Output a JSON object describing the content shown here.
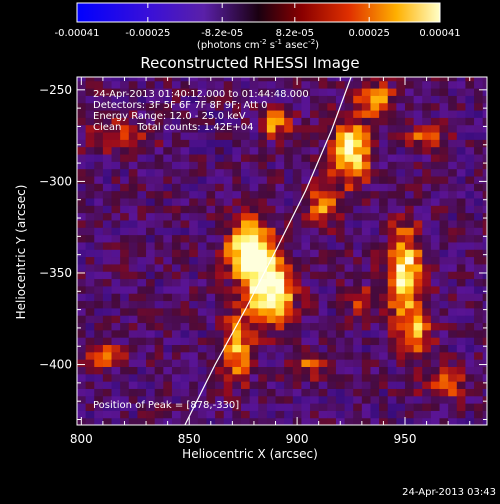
{
  "colorbar": {
    "tick_labels": [
      "-0.00041",
      "-0.00025",
      "-8.2e-05",
      "8.2e-05",
      "0.00025",
      "0.00041"
    ],
    "tick_values": [
      -0.00041,
      -0.00025,
      -8.2e-05,
      8.2e-05,
      0.00025,
      0.00041
    ],
    "range": [
      -0.00041,
      0.00041
    ],
    "unit_parts": [
      "(photons cm",
      "-2",
      " s",
      "-1",
      " asec",
      "-2",
      ")"
    ]
  },
  "chart_data": {
    "type": "heatmap",
    "title": "Reconstructed RHESSI Image",
    "xlabel": "Heliocentric X (arcsec)",
    "ylabel": "Heliocentric Y (arcsec)",
    "xlim": [
      798,
      988
    ],
    "ylim": [
      -433,
      -243
    ],
    "x_ticks": [
      800,
      850,
      900,
      950
    ],
    "y_ticks": [
      -250,
      -300,
      -350,
      -400
    ],
    "x_tick_labels": [
      "800",
      "850",
      "900",
      "950"
    ],
    "y_tick_labels": [
      "−250",
      "−300",
      "−350",
      "−400"
    ],
    "grid": false,
    "info_lines": [
      "24-Apr-2013 01:40:12.000 to 01:44:48.000",
      "Detectors: 3F 5F 6F 7F 8F 9F; Att 0",
      "Energy Range: 12.0 - 25.0 keV",
      "Clean     Total counts: 1.42E+04"
    ],
    "peak_label": "Position of Peak = [878,-330]",
    "peak": [
      878,
      -330
    ],
    "limb": [
      [
        848,
        -433
      ],
      [
        862,
        -400
      ],
      [
        876,
        -370
      ],
      [
        890,
        -338
      ],
      [
        904,
        -305
      ],
      [
        916,
        -272
      ],
      [
        925,
        -243
      ]
    ],
    "blobs": [
      {
        "x": 878,
        "y": -338,
        "sx": 7,
        "sy": 12,
        "a": 1.0
      },
      {
        "x": 888,
        "y": -360,
        "sx": 7,
        "sy": 12,
        "a": 0.95
      },
      {
        "x": 872,
        "y": -390,
        "sx": 5,
        "sy": 14,
        "a": 0.55
      },
      {
        "x": 925,
        "y": -283,
        "sx": 6,
        "sy": 12,
        "a": 0.8
      },
      {
        "x": 912,
        "y": -312,
        "sx": 5,
        "sy": 8,
        "a": 0.55
      },
      {
        "x": 936,
        "y": -255,
        "sx": 6,
        "sy": 6,
        "a": 0.55
      },
      {
        "x": 950,
        "y": -350,
        "sx": 6,
        "sy": 18,
        "a": 0.75
      },
      {
        "x": 955,
        "y": -385,
        "sx": 5,
        "sy": 9,
        "a": 0.5
      },
      {
        "x": 890,
        "y": -268,
        "sx": 5,
        "sy": 5,
        "a": 0.55
      },
      {
        "x": 960,
        "y": -275,
        "sx": 6,
        "sy": 5,
        "a": 0.5
      },
      {
        "x": 968,
        "y": -410,
        "sx": 8,
        "sy": 6,
        "a": 0.4
      },
      {
        "x": 818,
        "y": -275,
        "sx": 10,
        "sy": 6,
        "a": 0.35
      },
      {
        "x": 810,
        "y": -395,
        "sx": 8,
        "sy": 5,
        "a": 0.4
      },
      {
        "x": 905,
        "y": -400,
        "sx": 6,
        "sy": 5,
        "a": 0.35
      },
      {
        "x": 930,
        "y": -365,
        "sx": 5,
        "sy": 6,
        "a": 0.35
      }
    ]
  },
  "footer": {
    "timestamp": "24-Apr-2013 03:43"
  }
}
